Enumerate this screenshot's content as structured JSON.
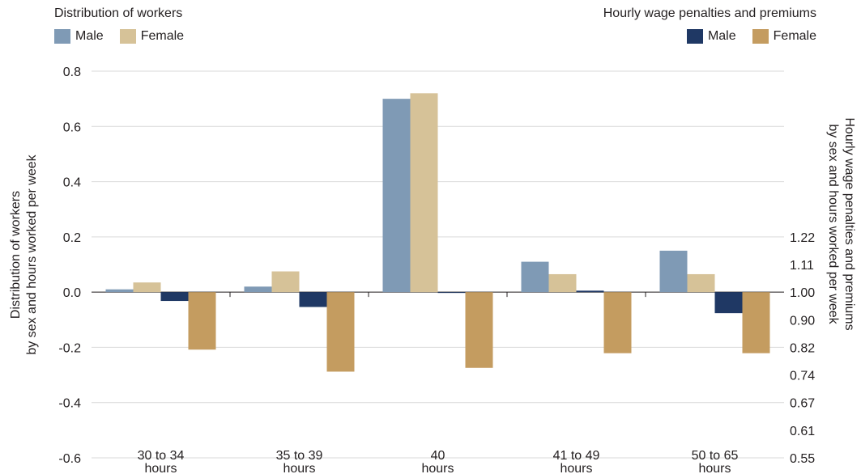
{
  "chart_data": {
    "type": "bar",
    "categories": [
      [
        "30 to 34",
        "hours"
      ],
      [
        "35 to 39",
        "hours"
      ],
      [
        "40",
        "hours"
      ],
      [
        "41 to 49",
        "hours"
      ],
      [
        "50 to 65",
        "hours"
      ]
    ],
    "left_axis": {
      "label_lines": [
        "Distribution of workers",
        "by sex and hours worked per week"
      ],
      "ticks": [
        "0.8",
        "0.6",
        "0.4",
        "0.2",
        "0.0",
        "-0.2",
        "-0.4",
        "-0.6"
      ],
      "tick_values": [
        0.8,
        0.6,
        0.4,
        0.2,
        0.0,
        -0.2,
        -0.4,
        -0.6
      ],
      "ylim": [
        -0.6,
        0.8
      ]
    },
    "right_axis": {
      "label_lines": [
        "Hourly wage penalties and premiums",
        "by sex and hours worked per week"
      ],
      "ticks": [
        "1.22",
        "1.11",
        "1.00",
        "0.90",
        "0.82",
        "0.74",
        "0.67",
        "0.61",
        "0.55"
      ],
      "tick_positions_in_left_units": [
        0.2,
        0.1,
        0.0,
        -0.1,
        -0.2,
        -0.3,
        -0.4,
        -0.5,
        -0.6
      ],
      "scale": "log"
    },
    "legend_groups": [
      {
        "title": "Distribution of workers",
        "position": "top-left",
        "entries": [
          "Male",
          "Female"
        ]
      },
      {
        "title": "Hourly wage penalties and premiums",
        "position": "top-right",
        "entries": [
          "Male",
          "Female"
        ]
      }
    ],
    "series": [
      {
        "name": "Male",
        "group": "Distribution of workers",
        "axis": "left",
        "color": "#7f9ab5",
        "values": [
          0.01,
          0.02,
          0.7,
          0.11,
          0.15
        ]
      },
      {
        "name": "Female",
        "group": "Distribution of workers",
        "axis": "left",
        "color": "#d6c298",
        "values": [
          0.035,
          0.075,
          0.72,
          0.065,
          0.065
        ]
      },
      {
        "name": "Male",
        "group": "Hourly wage penalties and premiums",
        "axis": "right",
        "color": "#1f3864",
        "values": [
          0.97,
          0.95,
          1.0,
          1.005,
          0.93
        ]
      },
      {
        "name": "Female",
        "group": "Hourly wage penalties and premiums",
        "axis": "right",
        "color": "#c49c60",
        "values": [
          0.82,
          0.76,
          0.77,
          0.81,
          0.81
        ]
      }
    ],
    "grid": true
  }
}
